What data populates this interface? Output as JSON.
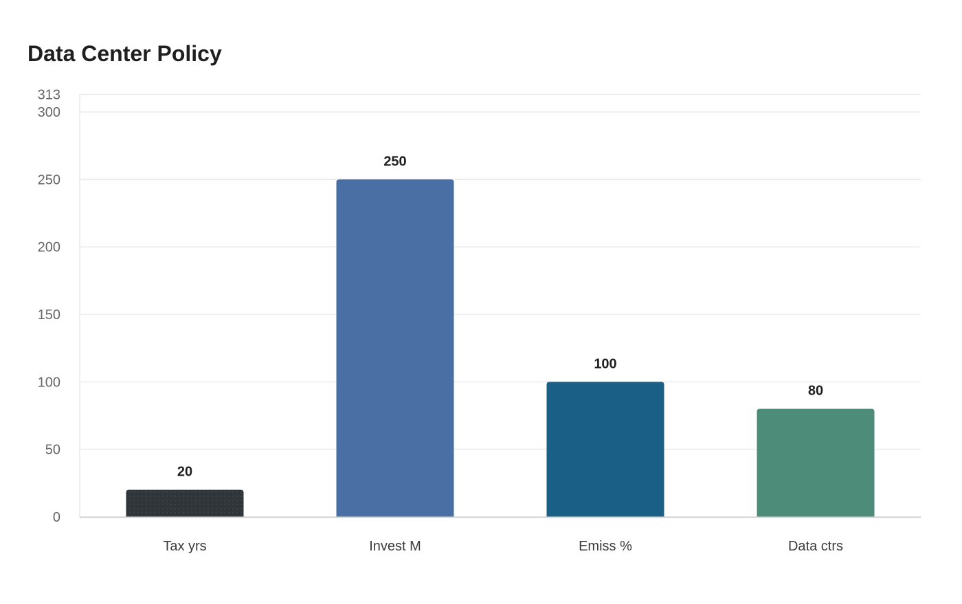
{
  "chart_data": {
    "type": "bar",
    "title": "Data Center Policy",
    "categories": [
      "Tax yrs",
      "Invest M",
      "Emiss %",
      "Data ctrs"
    ],
    "values": [
      20,
      250,
      100,
      80
    ],
    "colors": [
      "#2f3538",
      "#4a6fa5",
      "#1a5f85",
      "#4e8c7a"
    ],
    "xlabel": "",
    "ylabel": "",
    "ylim": [
      0,
      313
    ],
    "yticks": [
      0,
      50,
      100,
      150,
      200,
      250,
      300,
      313
    ],
    "grid": true,
    "legend": "none",
    "data_labels": true
  }
}
